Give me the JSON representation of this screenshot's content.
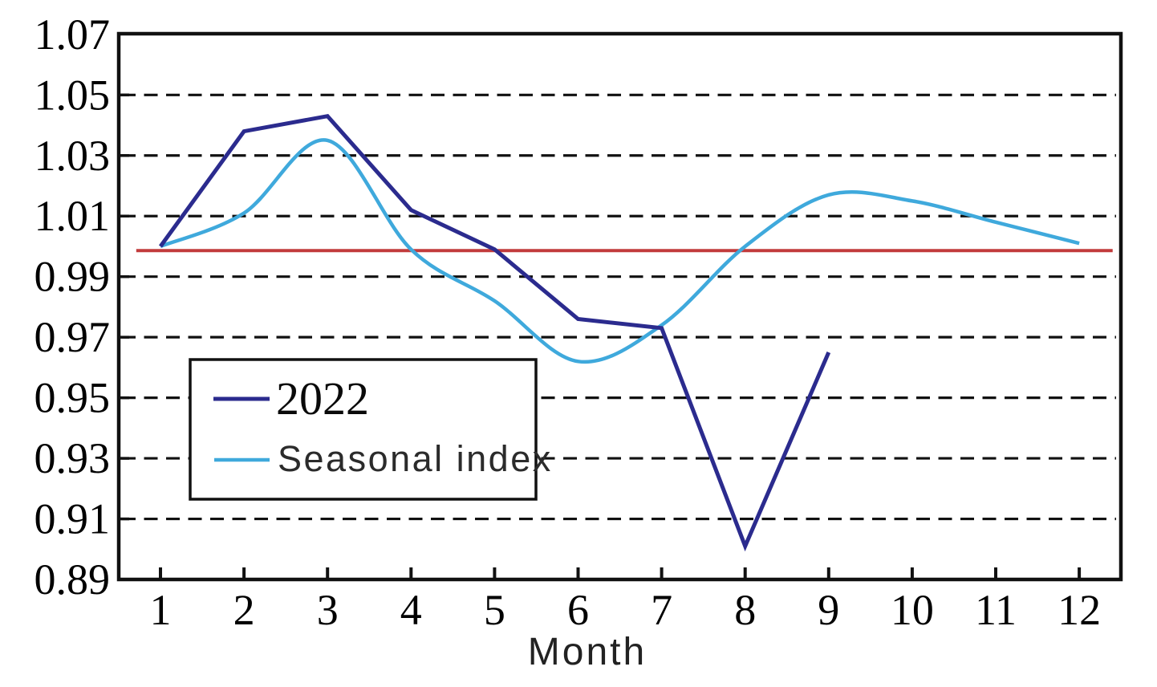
{
  "chart_data": {
    "type": "line",
    "title": "",
    "xlabel": "Month",
    "ylabel": "",
    "x_ticks": [
      1,
      2,
      3,
      4,
      5,
      6,
      7,
      8,
      9,
      10,
      11,
      12
    ],
    "y_ticks": [
      "1.07",
      "1.05",
      "1.03",
      "1.01",
      "0.99",
      "0.97",
      "0.95",
      "0.93",
      "0.91",
      "0.89"
    ],
    "ylim": [
      0.89,
      1.07
    ],
    "xlim": [
      0.5,
      12.5
    ],
    "grid": {
      "style": "dashed-horizontal",
      "values": [
        1.05,
        1.03,
        1.01,
        0.99,
        0.97,
        0.95,
        0.93,
        0.91
      ],
      "color": "#111111"
    },
    "series": [
      {
        "name": "2022",
        "color": "#2B2B8E",
        "line_style": "straight",
        "x": [
          1,
          2,
          3,
          4,
          5,
          6,
          7,
          8,
          9
        ],
        "values": [
          1.0,
          1.038,
          1.043,
          1.012,
          0.999,
          0.976,
          0.973,
          0.901,
          0.965
        ]
      },
      {
        "name": "Seasonal index",
        "color": "#3FA9DC",
        "line_style": "smooth",
        "x": [
          1,
          2,
          3,
          4,
          5,
          6,
          7,
          8,
          9,
          10,
          11,
          12
        ],
        "values": [
          1.0,
          1.011,
          1.035,
          0.999,
          0.982,
          0.962,
          0.974,
          1.0,
          1.017,
          1.015,
          1.008,
          1.001
        ]
      }
    ],
    "baseline": {
      "value": 0.9986,
      "color": "#C23B3C",
      "x_start": 0.71,
      "x_end": 12.4
    },
    "legend": {
      "position": "inside-left-middle",
      "labels": [
        "2022",
        "Seasonal index"
      ]
    },
    "axis_color": "#111111",
    "text_color": "#000000"
  }
}
